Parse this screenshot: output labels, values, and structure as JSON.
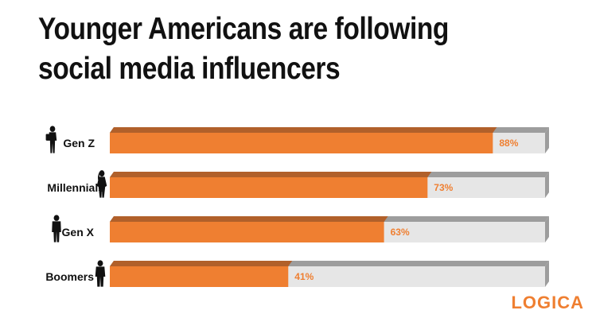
{
  "title": "Younger Americans are following social media influencers",
  "brand": {
    "text": "LOGICA"
  },
  "colors": {
    "bar_fill": "#ef7f31",
    "bar_top": "#b1602a",
    "track_fill": "#e6e6e6",
    "track_top": "#9d9d9d",
    "value_text": "#ef7f31",
    "brand": "#ef7f31",
    "icon": "#111111"
  },
  "chart_data": {
    "type": "bar",
    "orientation": "horizontal",
    "title": "Younger Americans are following social media influencers",
    "categories": [
      "Gen Z",
      "Millennials",
      "Gen X",
      "Boomers"
    ],
    "values": [
      88,
      73,
      63,
      41
    ],
    "value_labels": [
      "88%",
      "73%",
      "63%",
      "41%"
    ],
    "xlim": [
      0,
      100
    ],
    "unit": "%",
    "grid": false
  }
}
